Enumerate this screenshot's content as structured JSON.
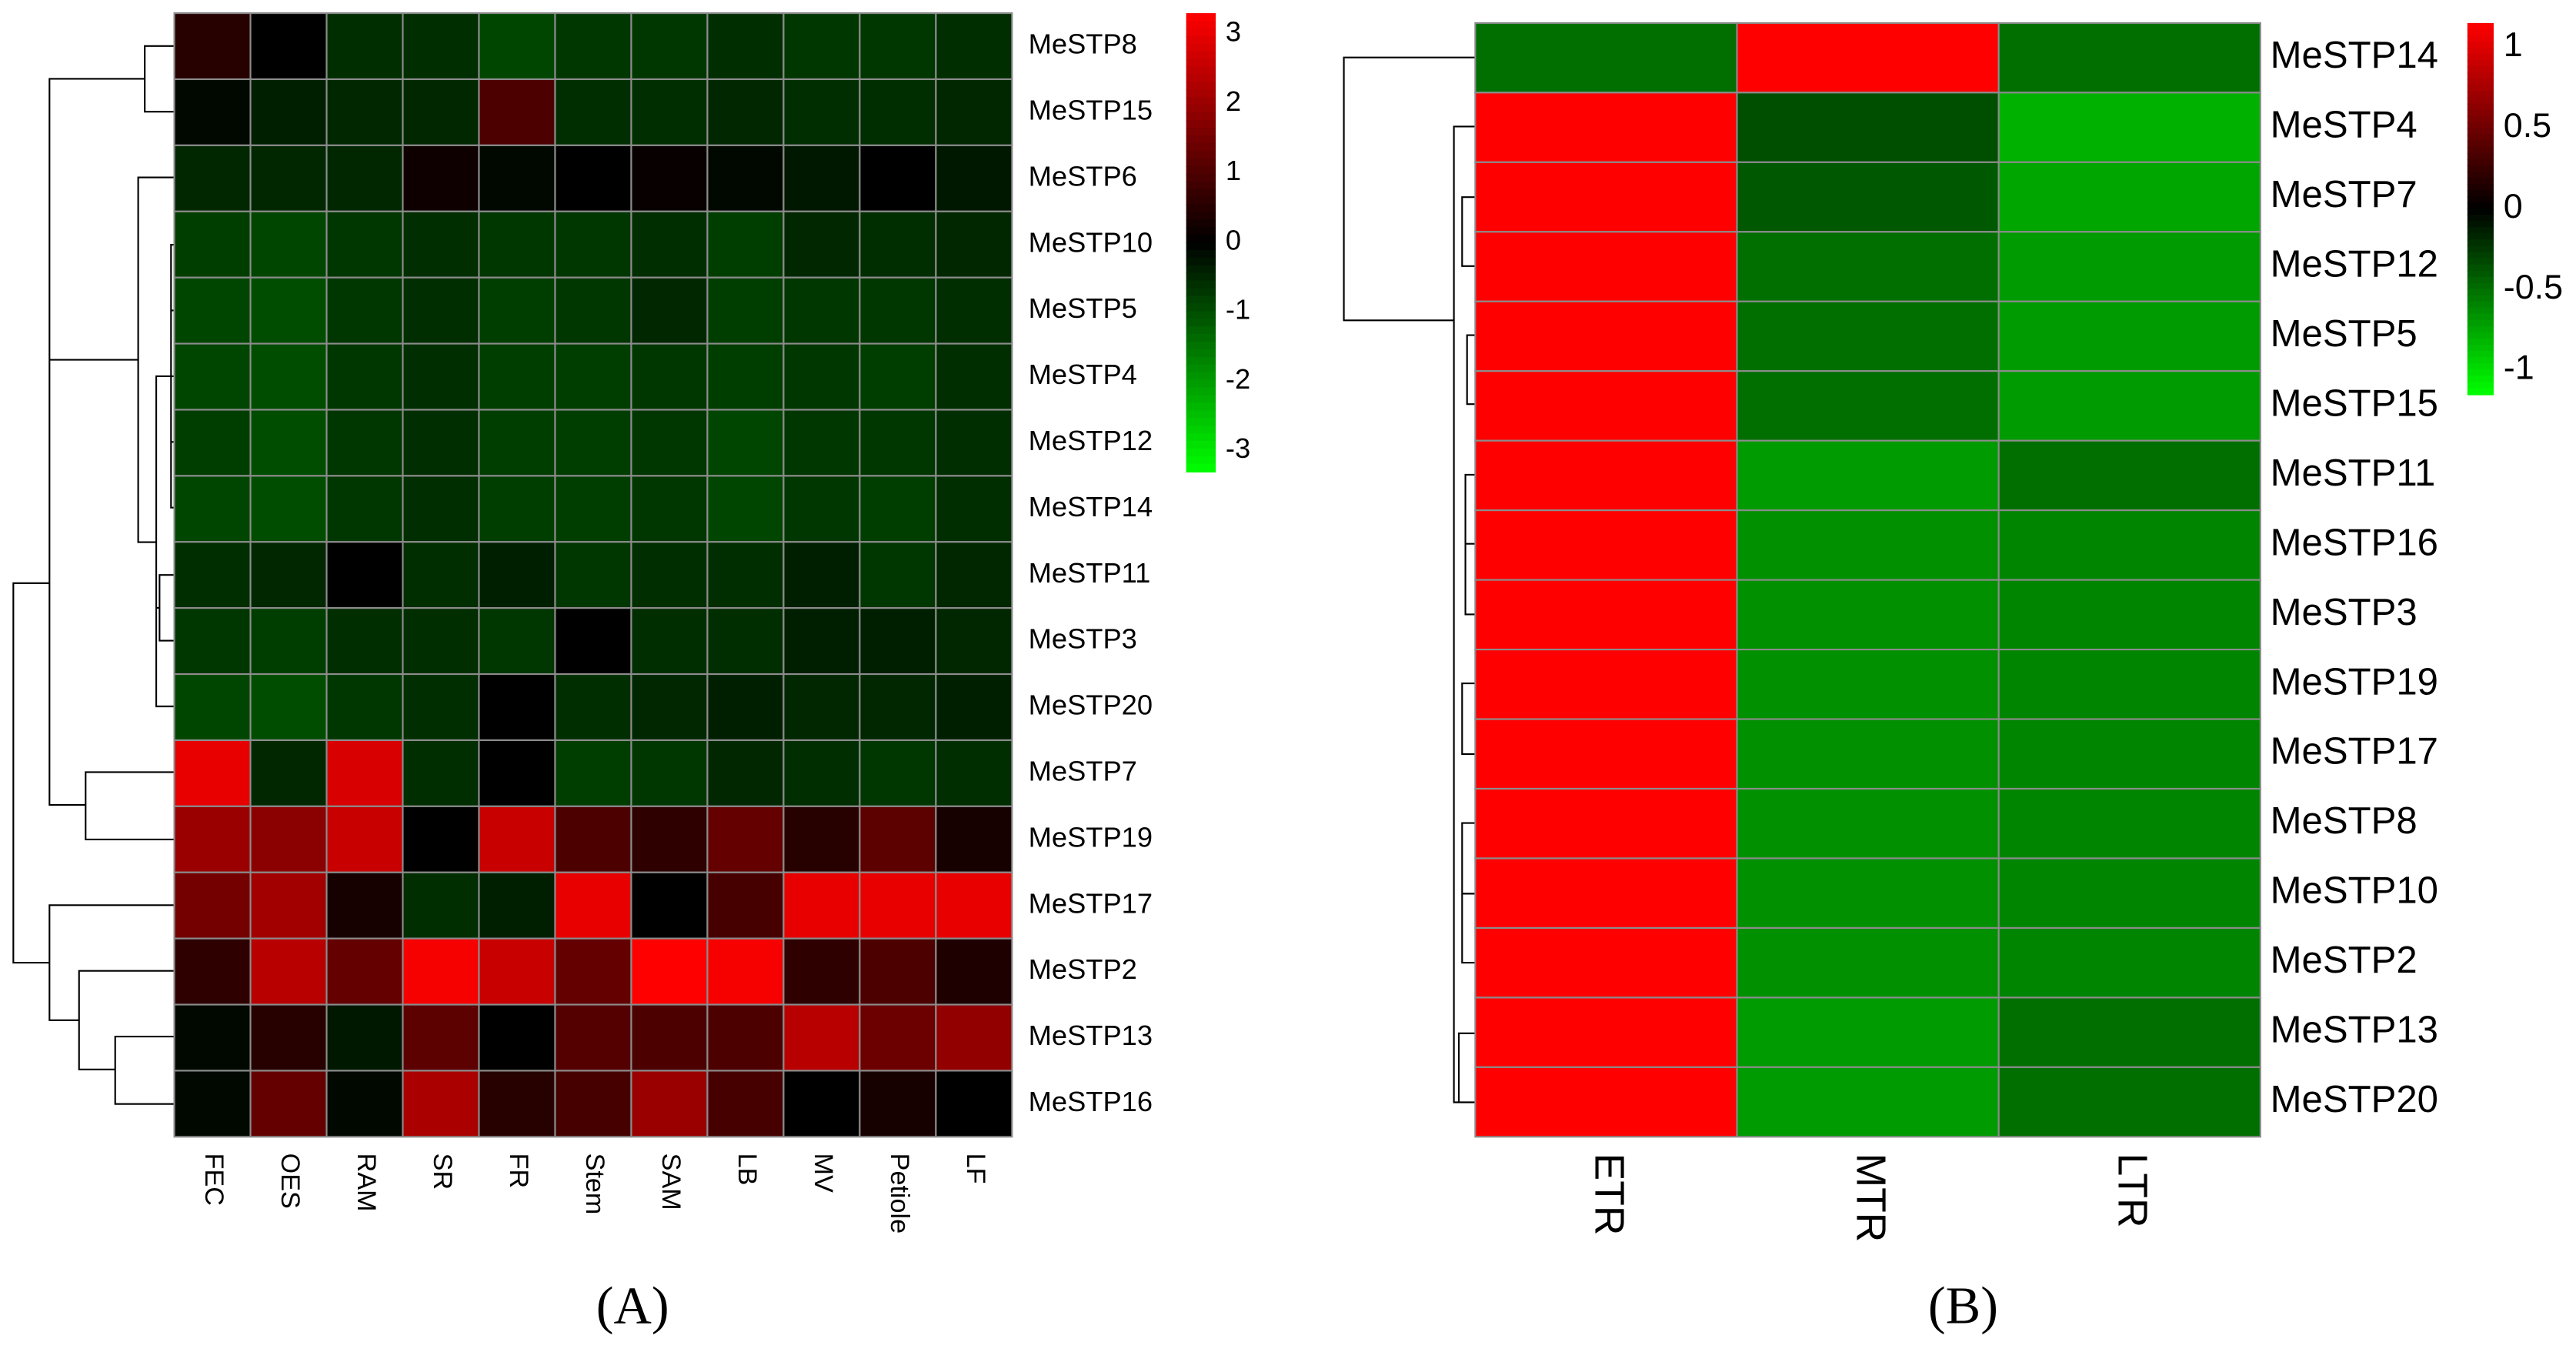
{
  "chart_data": [
    {
      "type": "heatmap",
      "caption": "(A)",
      "categories": [
        "FEC",
        "OES",
        "RAM",
        "SR",
        "FR",
        "Stem",
        "SAM",
        "LB",
        "MV",
        "Petiole",
        "LF"
      ],
      "rows": [
        "MeSTP8",
        "MeSTP15",
        "MeSTP6",
        "MeSTP10",
        "MeSTP5",
        "MeSTP4",
        "MeSTP12",
        "MeSTP14",
        "MeSTP11",
        "MeSTP3",
        "MeSTP20",
        "MeSTP7",
        "MeSTP19",
        "MeSTP17",
        "MeSTP2",
        "MeSTP13",
        "MeSTP16"
      ],
      "values": [
        [
          0.5,
          0,
          -0.6,
          -0.6,
          -0.9,
          -0.7,
          -0.7,
          -0.6,
          -0.7,
          -0.7,
          -0.6
        ],
        [
          -0.1,
          -0.4,
          -0.5,
          -0.5,
          1.0,
          -0.6,
          -0.6,
          -0.5,
          -0.6,
          -0.6,
          -0.5
        ],
        [
          -0.5,
          -0.5,
          -0.5,
          0.2,
          -0.1,
          0,
          0.1,
          -0.1,
          -0.3,
          0,
          -0.3
        ],
        [
          -0.8,
          -0.9,
          -0.7,
          -0.6,
          -0.7,
          -0.7,
          -0.6,
          -0.8,
          -0.5,
          -0.6,
          -0.5
        ],
        [
          -0.9,
          -1.0,
          -0.7,
          -0.6,
          -0.8,
          -0.7,
          -0.5,
          -0.8,
          -0.7,
          -0.7,
          -0.6
        ],
        [
          -0.9,
          -1.0,
          -0.7,
          -0.6,
          -0.8,
          -0.8,
          -0.7,
          -0.8,
          -0.7,
          -0.8,
          -0.6
        ],
        [
          -0.8,
          -1.0,
          -0.7,
          -0.6,
          -0.8,
          -0.8,
          -0.7,
          -0.9,
          -0.7,
          -0.7,
          -0.6
        ],
        [
          -0.9,
          -1.0,
          -0.7,
          -0.6,
          -0.8,
          -0.8,
          -0.7,
          -0.9,
          -0.7,
          -0.8,
          -0.6
        ],
        [
          -0.6,
          -0.5,
          0,
          -0.6,
          -0.4,
          -0.7,
          -0.6,
          -0.6,
          -0.4,
          -0.7,
          -0.5
        ],
        [
          -0.7,
          -0.8,
          -0.6,
          -0.6,
          -0.7,
          0,
          -0.6,
          -0.6,
          -0.4,
          -0.4,
          -0.5
        ],
        [
          -0.9,
          -1.0,
          -0.7,
          -0.6,
          0,
          -0.6,
          -0.5,
          -0.4,
          -0.5,
          -0.5,
          -0.4
        ],
        [
          3.0,
          -0.5,
          2.8,
          -0.6,
          0,
          -0.8,
          -0.7,
          -0.5,
          -0.6,
          -0.7,
          -0.6
        ],
        [
          2.0,
          1.8,
          2.6,
          0,
          2.6,
          1.0,
          0.6,
          1.3,
          0.5,
          1.2,
          0.3
        ],
        [
          1.5,
          2.1,
          0.3,
          -0.6,
          -0.4,
          3.0,
          0,
          0.9,
          3.0,
          3.0,
          3.0
        ],
        [
          0.6,
          2.4,
          1.3,
          3.2,
          2.6,
          1.3,
          3.3,
          3.2,
          0.6,
          1.0,
          0.4
        ],
        [
          -0.1,
          0.5,
          -0.3,
          1.2,
          0,
          1.1,
          1.0,
          1.0,
          2.4,
          1.4,
          1.9
        ],
        [
          -0.1,
          1.3,
          -0.1,
          2.2,
          0.5,
          0.9,
          2.0,
          0.9,
          0,
          0.3,
          0
        ]
      ],
      "colors": [
        "#00ff00",
        "#000000",
        "#ff0000"
      ],
      "clim": [
        -3.3,
        3.3
      ],
      "cticks": [
        3,
        2,
        1,
        0,
        -1,
        -2,
        -3
      ]
    },
    {
      "type": "heatmap",
      "caption": "(B)",
      "categories": [
        "ETR",
        "MTR",
        "LTR"
      ],
      "rows": [
        "MeSTP14",
        "MeSTP4",
        "MeSTP7",
        "MeSTP12",
        "MeSTP5",
        "MeSTP15",
        "MeSTP11",
        "MeSTP16",
        "MeSTP3",
        "MeSTP19",
        "MeSTP17",
        "MeSTP8",
        "MeSTP10",
        "MeSTP2",
        "MeSTP13",
        "MeSTP20"
      ],
      "values": [
        [
          -0.5,
          1.15,
          -0.5
        ],
        [
          1.15,
          -0.35,
          -0.8
        ],
        [
          1.15,
          -0.4,
          -0.75
        ],
        [
          1.15,
          -0.5,
          -0.7
        ],
        [
          1.15,
          -0.5,
          -0.7
        ],
        [
          1.15,
          -0.5,
          -0.7
        ],
        [
          1.15,
          -0.7,
          -0.5
        ],
        [
          1.15,
          -0.65,
          -0.6
        ],
        [
          1.15,
          -0.65,
          -0.6
        ],
        [
          1.15,
          -0.65,
          -0.6
        ],
        [
          1.15,
          -0.65,
          -0.6
        ],
        [
          1.15,
          -0.65,
          -0.6
        ],
        [
          1.15,
          -0.65,
          -0.6
        ],
        [
          1.15,
          -0.65,
          -0.6
        ],
        [
          1.15,
          -0.7,
          -0.5
        ],
        [
          1.15,
          -0.7,
          -0.5
        ]
      ],
      "colors": [
        "#00ff00",
        "#000000",
        "#ff0000"
      ],
      "clim": [
        -1.15,
        1.15
      ],
      "cticks": [
        1,
        0.5,
        0,
        -0.5,
        -1
      ]
    }
  ]
}
